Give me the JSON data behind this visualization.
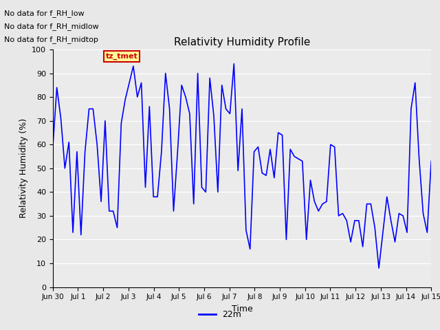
{
  "title": "Relativity Humidity Profile",
  "xlabel": "Time",
  "ylabel": "Relativity Humidity (%)",
  "ylim": [
    0,
    100
  ],
  "yticks": [
    0,
    10,
    20,
    30,
    40,
    50,
    60,
    70,
    80,
    90,
    100
  ],
  "line_color": "#0000ff",
  "line_width": 1.2,
  "bg_color": "#e8e8e8",
  "plot_bg_color": "#ebebeb",
  "legend_label": "22m",
  "annotations": [
    "No data for f_RH_low",
    "No data for f_RH_midlow",
    "No data for f_RH_midtop"
  ],
  "tooltip_text": "tz_tmet",
  "x_tick_labels": [
    "Jun 30",
    "Jul 1",
    "Jul 2",
    "Jul 3",
    "Jul 4",
    "Jul 5",
    "Jul 6",
    "Jul 7",
    "Jul 8",
    "Jul 9",
    "Jul 10",
    "Jul 11",
    "Jul 12",
    "Jul 13",
    "Jul 14",
    "Jul 15"
  ],
  "rh_values": [
    59,
    84,
    71,
    50,
    61,
    23,
    57,
    22,
    57,
    75,
    75,
    60,
    36,
    70,
    32,
    32,
    25,
    69,
    79,
    86,
    93,
    80,
    86,
    42,
    76,
    38,
    38,
    57,
    90,
    75,
    32,
    57,
    85,
    80,
    73,
    35,
    90,
    42,
    40,
    88,
    72,
    40,
    85,
    75,
    73,
    94,
    49,
    75,
    24,
    16,
    57,
    59,
    48,
    47,
    58,
    46,
    65,
    64,
    20,
    58,
    55,
    54,
    53,
    20,
    45,
    36,
    32,
    35,
    36,
    60,
    59,
    30,
    31,
    28,
    19,
    28,
    28,
    17,
    35,
    35,
    25,
    8,
    23,
    38,
    28,
    19,
    31,
    30,
    23,
    75,
    86,
    54,
    31,
    23,
    53
  ]
}
